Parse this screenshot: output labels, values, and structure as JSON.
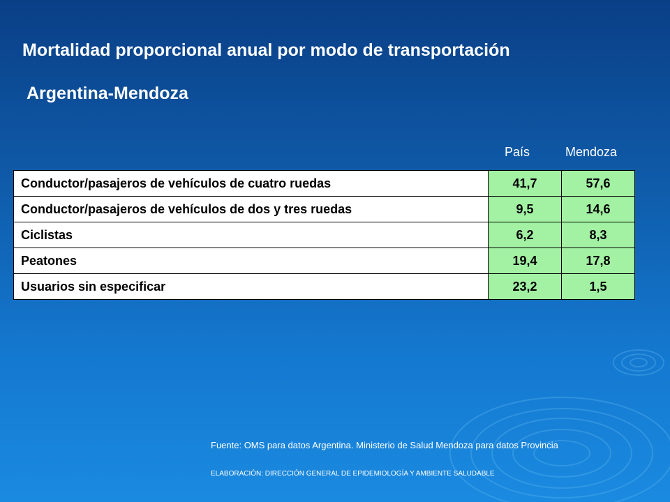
{
  "title": "Mortalidad proporcional anual por modo de transportación",
  "subtitle": "Argentina-Mendoza",
  "columns": {
    "pais": "País",
    "mendoza": "Mendoza"
  },
  "rows": [
    {
      "label": "Conductor/pasajeros de vehículos de cuatro ruedas",
      "pais": "41,7",
      "mendoza": "57,6"
    },
    {
      "label": "Conductor/pasajeros de vehículos de dos y tres ruedas",
      "pais": "9,5",
      "mendoza": "14,6"
    },
    {
      "label": "Ciclistas",
      "pais": "6,2",
      "mendoza": "8,3"
    },
    {
      "label": "Peatones",
      "pais": "19,4",
      "mendoza": "17,8"
    },
    {
      "label": "Usuarios sin especificar",
      "pais": "23,2",
      "mendoza": "1,5"
    }
  ],
  "source": "Fuente: OMS para datos Argentina. Ministerio de Salud Mendoza para datos Provincia",
  "credit": "ELABORACIÓN: DIRECCIÓN GENERAL DE EPIDEMIOLOGÍA Y AMBIENTE SALUDABLE",
  "colors": {
    "cell_value_bg": "#a3f1a3",
    "background": "#1478cf"
  }
}
